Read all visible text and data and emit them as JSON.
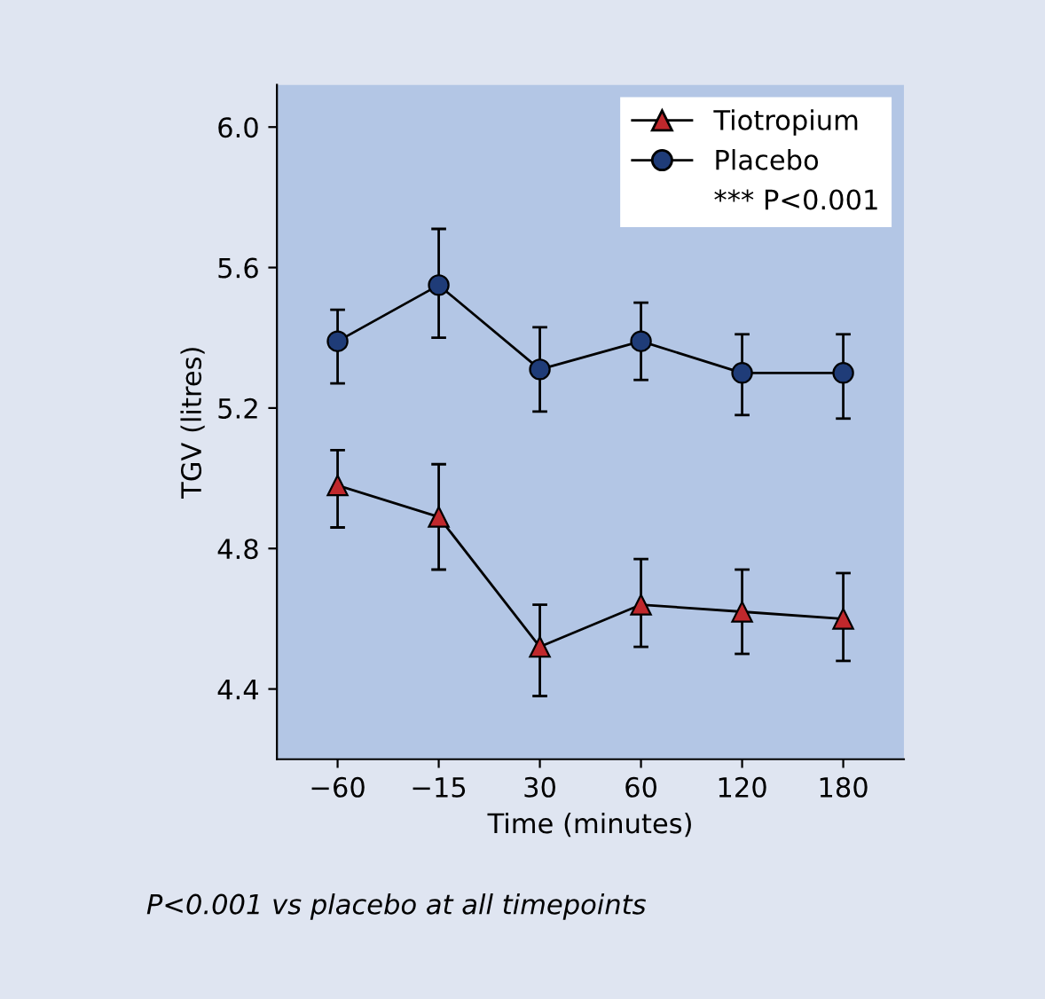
{
  "chart_data": {
    "type": "line",
    "xlabel": "Time (minutes)",
    "ylabel": "TGV (litres)",
    "categories": [
      "−60",
      "−15",
      "30",
      "60",
      "120",
      "180"
    ],
    "ylim": [
      4.2,
      6.12
    ],
    "yticks": [
      4.4,
      4.8,
      5.2,
      {
        "value": 5.6,
        "label": "5.6"
      },
      {
        "value": 6.0,
        "label": "6.0"
      }
    ],
    "series": [
      {
        "name": "Tiotropium",
        "color": "#c0282c",
        "marker": "triangle",
        "values": [
          4.98,
          4.89,
          4.52,
          4.64,
          4.62,
          4.6
        ],
        "errors": [
          [
            4.86,
            5.08
          ],
          [
            4.74,
            5.04
          ],
          [
            4.38,
            4.64
          ],
          [
            4.52,
            4.77
          ],
          [
            4.5,
            4.74
          ],
          [
            4.48,
            4.73
          ]
        ]
      },
      {
        "name": "Placebo",
        "color": "#1f3c78",
        "marker": "circle",
        "values": [
          5.39,
          5.55,
          5.31,
          5.39,
          5.3,
          5.3
        ],
        "errors": [
          [
            5.27,
            5.48
          ],
          [
            5.4,
            5.71
          ],
          [
            5.19,
            5.43
          ],
          [
            5.28,
            5.5
          ],
          [
            5.18,
            5.41
          ],
          [
            5.17,
            5.41
          ]
        ]
      }
    ],
    "legend": "top right",
    "grid": false,
    "annotations": [
      "*** P<0.001",
      "P<0.001 vs placebo at all timepoints"
    ]
  }
}
